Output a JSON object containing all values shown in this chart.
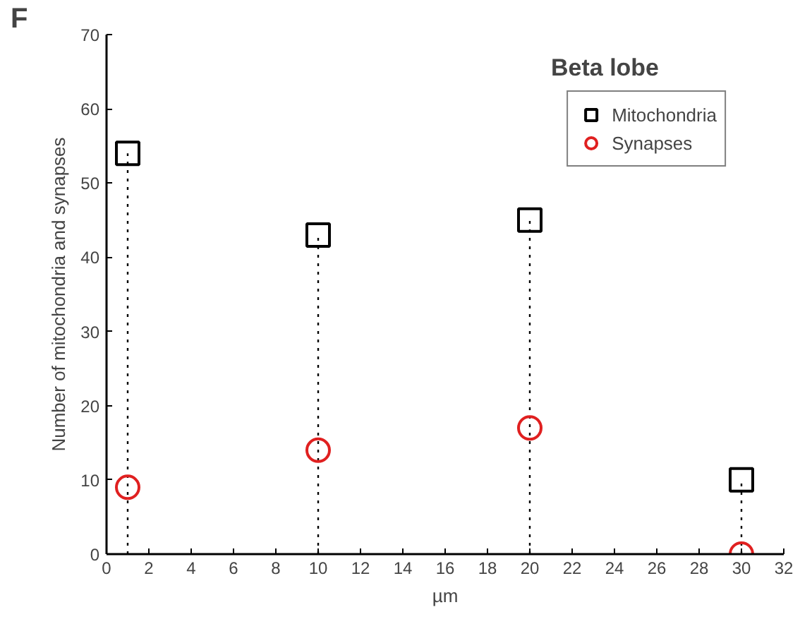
{
  "chart_data": {
    "type": "scatter",
    "title": "Beta lobe",
    "xlabel": "µm",
    "ylabel": "Number of mitochondria and synapses",
    "annotations": [
      "F"
    ],
    "x": [
      1,
      10,
      20,
      30
    ],
    "series": [
      {
        "name": "Mitochondria",
        "type": "lollipop",
        "color": "#000000",
        "marker": "square",
        "line_style": "dotted",
        "values": [
          54,
          43,
          45,
          10
        ]
      },
      {
        "name": "Synapses",
        "color": "#e02020",
        "marker": "circle",
        "values": [
          9,
          14,
          17,
          0
        ]
      }
    ],
    "xlim": [
      0,
      32
    ],
    "xticks": [
      0,
      2,
      4,
      6,
      8,
      10,
      12,
      14,
      16,
      18,
      20,
      22,
      24,
      26,
      28,
      30,
      32
    ],
    "ylim": [
      0,
      70
    ],
    "yticks": [
      0,
      10,
      20,
      30,
      40,
      50,
      60,
      70
    ],
    "grid": false,
    "legend": "top right"
  }
}
